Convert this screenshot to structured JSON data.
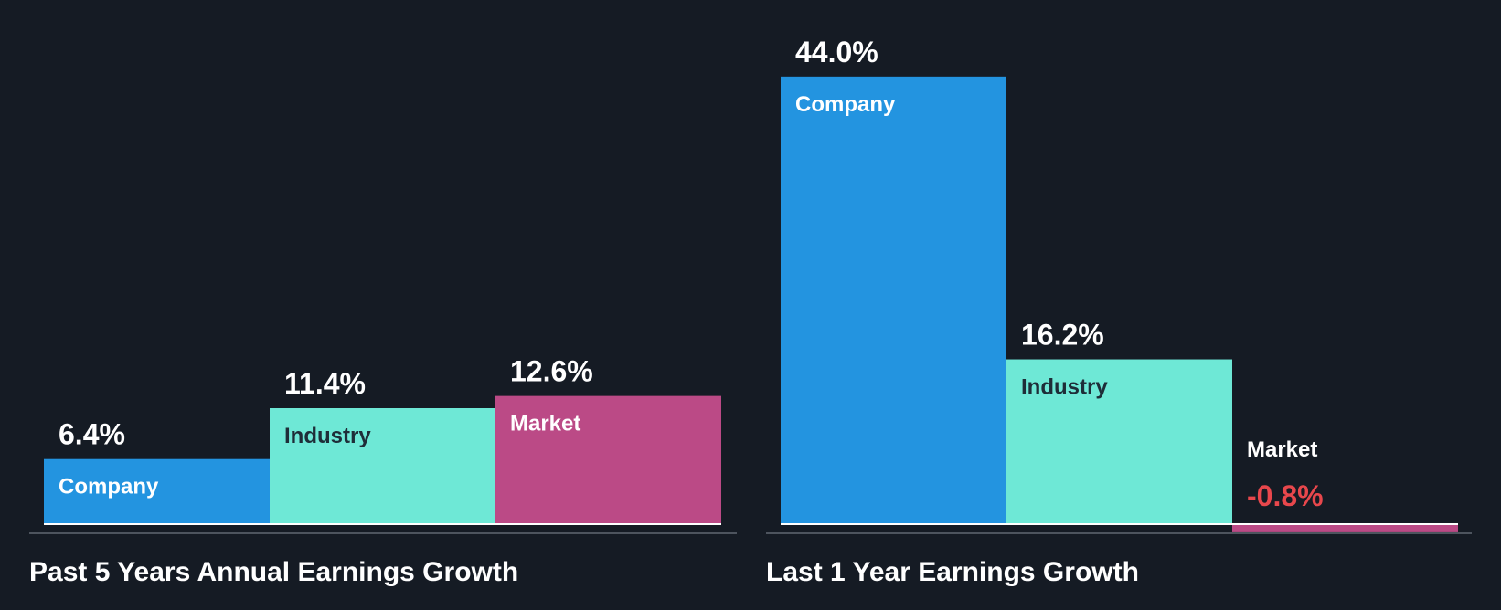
{
  "colors": {
    "background": "#151b24",
    "company": "#2394e0",
    "industry": "#6ee8d6",
    "market": "#bb4a86",
    "negative_label": "#e8474c",
    "axis": "#4d545e",
    "baseline": "#ffffff"
  },
  "chart_data": [
    {
      "type": "bar",
      "title": "Past 5 Years Annual Earnings Growth",
      "categories": [
        "Company",
        "Industry",
        "Market"
      ],
      "values": [
        6.4,
        11.4,
        12.6
      ],
      "value_labels": [
        "6.4%",
        "11.4%",
        "12.6%"
      ],
      "unit": "%"
    },
    {
      "type": "bar",
      "title": "Last 1 Year Earnings Growth",
      "categories": [
        "Company",
        "Industry",
        "Market"
      ],
      "values": [
        44.0,
        16.2,
        -0.8
      ],
      "value_labels": [
        "44.0%",
        "16.2%",
        "-0.8%"
      ],
      "unit": "%"
    }
  ]
}
